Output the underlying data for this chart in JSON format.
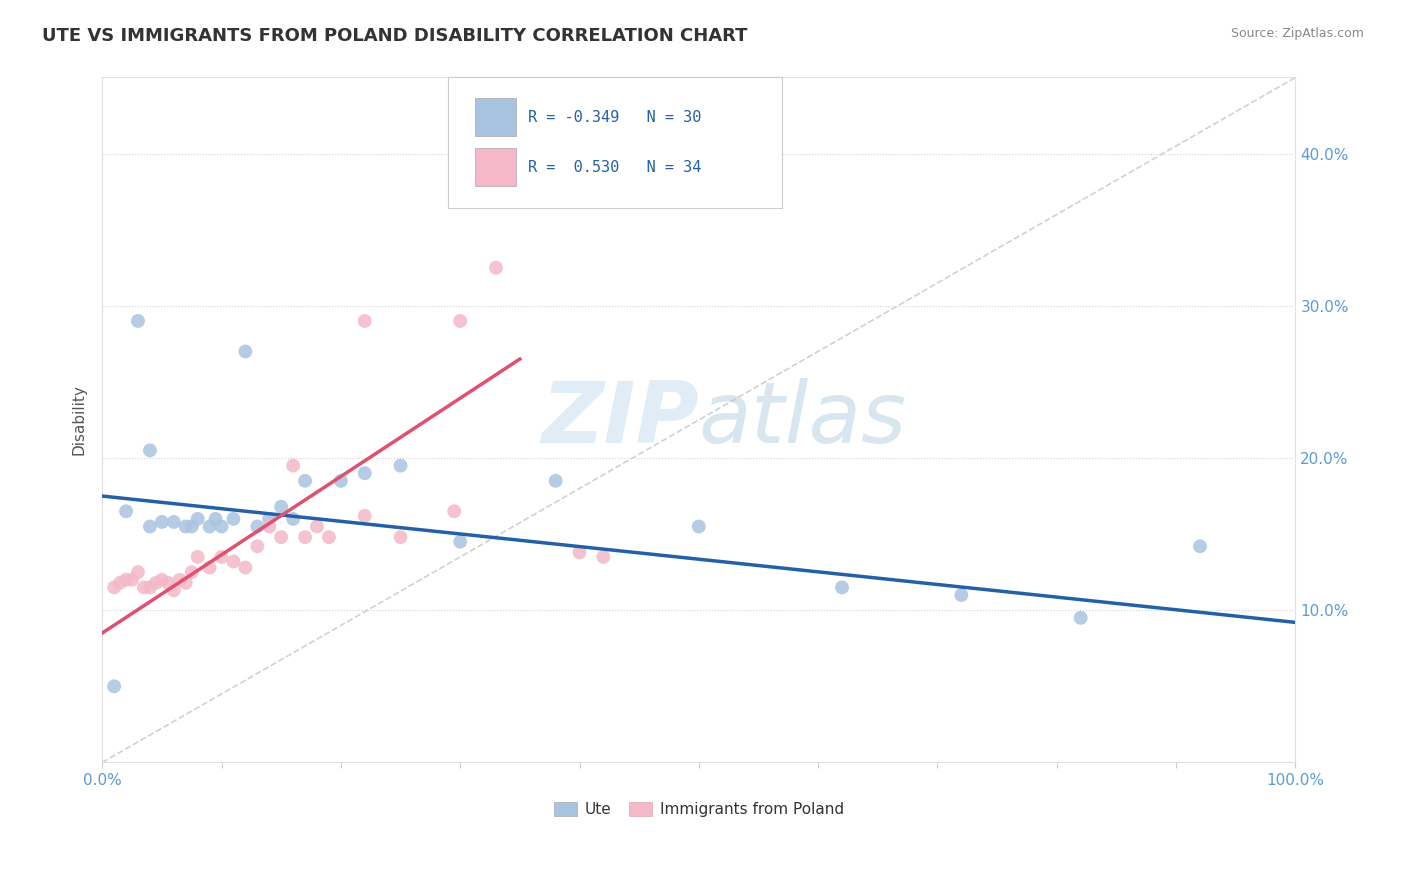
{
  "title": "UTE VS IMMIGRANTS FROM POLAND DISABILITY CORRELATION CHART",
  "source": "Source: ZipAtlas.com",
  "ylabel": "Disability",
  "xlim": [
    0.0,
    1.0
  ],
  "ylim": [
    0.0,
    0.45
  ],
  "yticks": [
    0.1,
    0.2,
    0.3,
    0.4
  ],
  "ytick_labels": [
    "10.0%",
    "20.0%",
    "30.0%",
    "40.0%"
  ],
  "xtick_labels": [
    "0.0%",
    "100.0%"
  ],
  "ute_R": -0.349,
  "ute_N": 30,
  "poland_R": 0.53,
  "poland_N": 34,
  "ute_color": "#a8c4e0",
  "ute_line_color": "#2460a7",
  "poland_color": "#f4b8c8",
  "poland_line_color": "#e05070",
  "diagonal_color": "#cccccc",
  "background_color": "#ffffff",
  "legend_text_color": "#2460a7",
  "tick_label_color": "#5b9bd5",
  "grid_color": "#d0d0d0",
  "ute_line_x0": 0.0,
  "ute_line_y0": 0.175,
  "ute_line_x1": 1.0,
  "ute_line_y1": 0.092,
  "poland_line_x0": 0.0,
  "poland_line_y0": 0.085,
  "poland_line_x1": 0.35,
  "poland_line_y1": 0.265,
  "ute_x": [
    0.01,
    0.02,
    0.03,
    0.04,
    0.05,
    0.06,
    0.07,
    0.075,
    0.08,
    0.09,
    0.095,
    0.1,
    0.11,
    0.12,
    0.13,
    0.14,
    0.15,
    0.16,
    0.17,
    0.2,
    0.22,
    0.25,
    0.3,
    0.38,
    0.5,
    0.62,
    0.72,
    0.82,
    0.92,
    0.04
  ],
  "ute_y": [
    0.05,
    0.165,
    0.29,
    0.155,
    0.158,
    0.158,
    0.155,
    0.155,
    0.16,
    0.155,
    0.16,
    0.155,
    0.16,
    0.27,
    0.155,
    0.16,
    0.168,
    0.16,
    0.185,
    0.185,
    0.19,
    0.195,
    0.145,
    0.185,
    0.155,
    0.115,
    0.11,
    0.095,
    0.142,
    0.205
  ],
  "poland_x": [
    0.01,
    0.015,
    0.02,
    0.025,
    0.03,
    0.035,
    0.04,
    0.045,
    0.05,
    0.055,
    0.06,
    0.065,
    0.07,
    0.075,
    0.08,
    0.09,
    0.1,
    0.11,
    0.12,
    0.13,
    0.14,
    0.15,
    0.16,
    0.17,
    0.18,
    0.19,
    0.22,
    0.25,
    0.295,
    0.3,
    0.33,
    0.4,
    0.42,
    0.22
  ],
  "poland_y": [
    0.115,
    0.118,
    0.12,
    0.12,
    0.125,
    0.115,
    0.115,
    0.118,
    0.12,
    0.118,
    0.113,
    0.12,
    0.118,
    0.125,
    0.135,
    0.128,
    0.135,
    0.132,
    0.128,
    0.142,
    0.155,
    0.148,
    0.195,
    0.148,
    0.155,
    0.148,
    0.162,
    0.148,
    0.165,
    0.29,
    0.325,
    0.138,
    0.135,
    0.29
  ]
}
